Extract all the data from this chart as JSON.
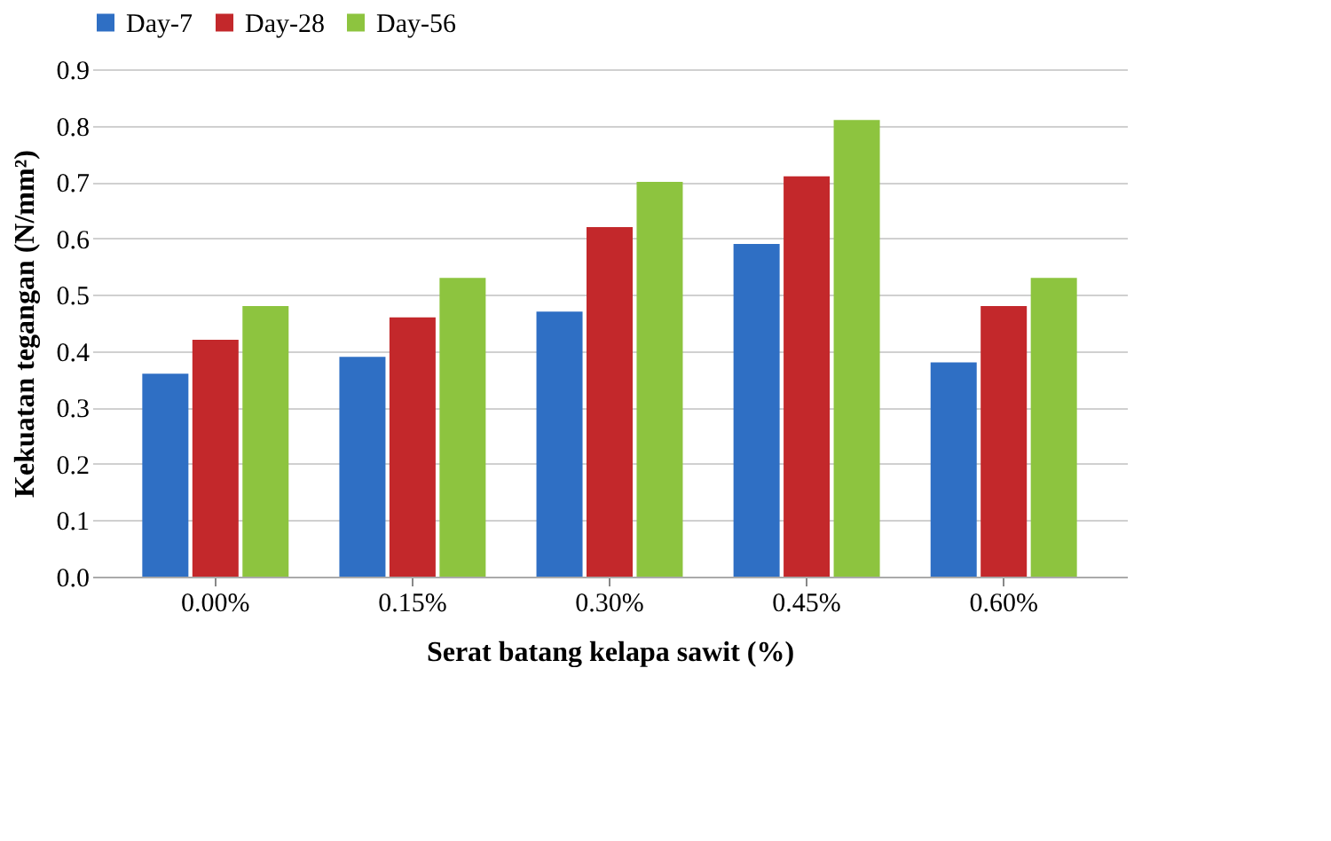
{
  "chart_data": {
    "type": "bar",
    "xlabel": "Serat batang kelapa sawit (%)",
    "ylabel": "Kekuatan tegangan (N/mm²)",
    "categories": [
      "0.00%",
      "0.15%",
      "0.30%",
      "0.45%",
      "0.60%"
    ],
    "series": [
      {
        "name": "Day-7",
        "color": "#2f6fc4",
        "values": [
          0.36,
          0.39,
          0.47,
          0.59,
          0.38
        ]
      },
      {
        "name": "Day-28",
        "color": "#c3282b",
        "values": [
          0.42,
          0.46,
          0.62,
          0.71,
          0.48
        ]
      },
      {
        "name": "Day-56",
        "color": "#8dc43f",
        "values": [
          0.48,
          0.53,
          0.7,
          0.81,
          0.53
        ]
      }
    ],
    "ylim": [
      0,
      0.9
    ],
    "yticks": [
      {
        "value": 0,
        "label": "0.0"
      },
      {
        "value": 0.1,
        "label": "0.1"
      },
      {
        "value": 0.2,
        "label": "0.2"
      },
      {
        "value": 0.3,
        "label": "0.3"
      },
      {
        "value": 0.4,
        "label": "0.4"
      },
      {
        "value": 0.5,
        "label": "0.5"
      },
      {
        "value": 0.6,
        "label": "0.6"
      },
      {
        "value": 0.7,
        "label": "0.7"
      },
      {
        "value": 0.8,
        "label": "0.8"
      },
      {
        "value": 0.9,
        "label": "0.9"
      }
    ],
    "grid": "y",
    "legend": "top"
  }
}
